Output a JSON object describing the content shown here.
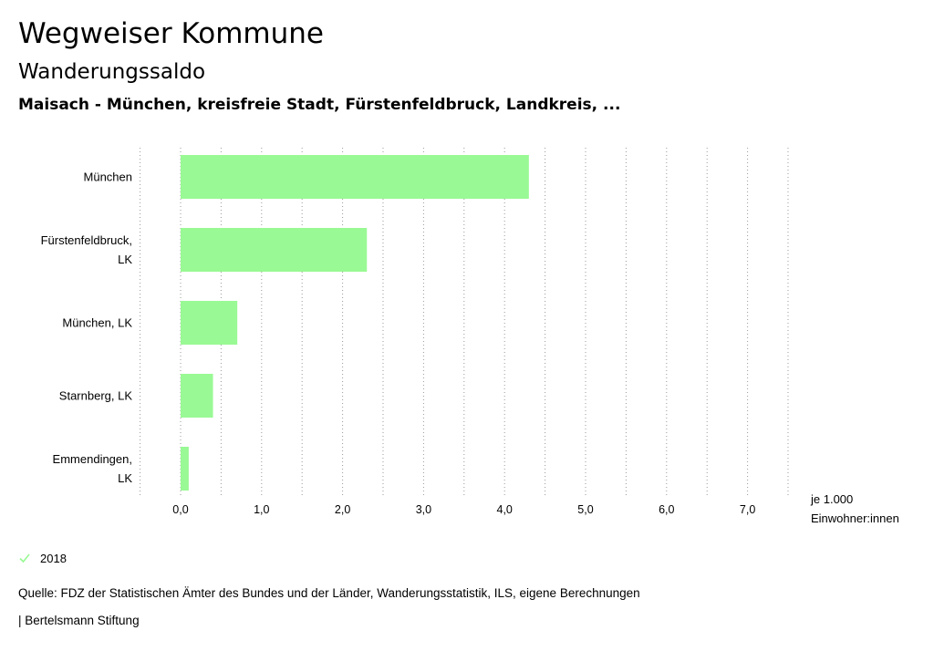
{
  "header": {
    "title": "Wegweiser Kommune",
    "subtitle": "Wanderungssaldo",
    "selection": "Maisach - München, kreisfreie Stadt, Fürstenfeldbruck, Landkreis, ..."
  },
  "chart_data": {
    "type": "bar",
    "orientation": "horizontal",
    "categories": [
      "München",
      "Fürstenfeldbruck, LK",
      "München, LK",
      "Starnberg, LK",
      "Emmendingen, LK"
    ],
    "series": [
      {
        "name": "2018",
        "values": [
          4.3,
          2.3,
          0.7,
          0.4,
          0.1
        ]
      }
    ],
    "x_ticks": [
      "0,0",
      "1,0",
      "2,0",
      "3,0",
      "4,0",
      "5,0",
      "6,0",
      "7,0"
    ],
    "x_unit_label": [
      "je 1.000",
      "Einwohner:innen"
    ],
    "xlim": [
      -0.5,
      7.5
    ],
    "grid": "vertical dotted",
    "legend_position": "bottom-left",
    "bar_color": "#99f994"
  },
  "legend": {
    "label": "2018",
    "icon": "check-icon",
    "color": "#99f994"
  },
  "footer": {
    "source": "Quelle: FDZ der Statistischen Ämter des Bundes und der Länder, Wanderungsstatistik, ILS, eigene Berechnungen",
    "brand": "| Bertelsmann Stiftung"
  }
}
